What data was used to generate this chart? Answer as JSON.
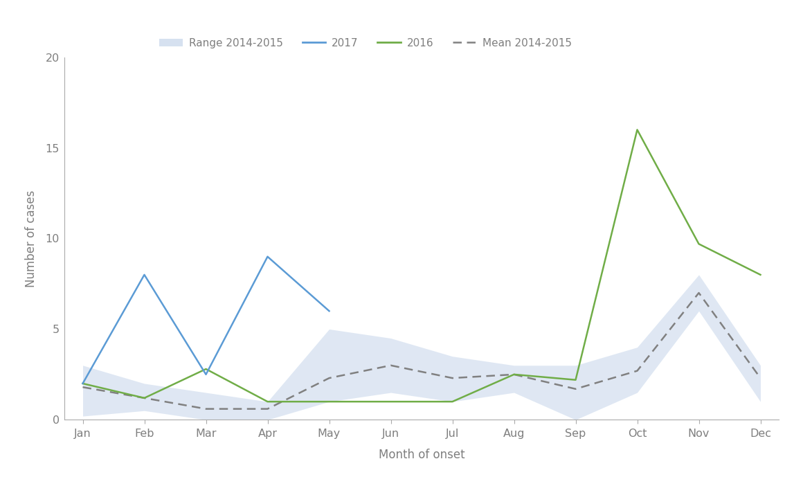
{
  "months": [
    "Jan",
    "Feb",
    "Mar",
    "Apr",
    "May",
    "Jun",
    "Jul",
    "Aug",
    "Sep",
    "Oct",
    "Nov",
    "Dec"
  ],
  "x": [
    0,
    1,
    2,
    3,
    4,
    5,
    6,
    7,
    8,
    9,
    10,
    11
  ],
  "data_2017": [
    2.0,
    8.0,
    2.5,
    9.0,
    6.0,
    null,
    null,
    null,
    null,
    null,
    null,
    null
  ],
  "data_2016": [
    2.0,
    1.2,
    2.8,
    1.0,
    1.0,
    1.0,
    1.0,
    2.5,
    2.2,
    16.0,
    9.7,
    8.0
  ],
  "mean_2014_2015": [
    1.8,
    1.2,
    0.6,
    0.6,
    2.3,
    3.0,
    2.3,
    2.5,
    1.7,
    2.7,
    7.0,
    2.3
  ],
  "range_low": [
    0.2,
    0.5,
    0.0,
    0.0,
    1.0,
    1.5,
    1.0,
    1.5,
    0.0,
    1.5,
    6.0,
    1.0
  ],
  "range_high": [
    3.0,
    2.0,
    1.5,
    1.0,
    5.0,
    4.5,
    3.5,
    3.0,
    3.0,
    4.0,
    8.0,
    3.0
  ],
  "color_2017": "#5b9bd5",
  "color_2016": "#70ad47",
  "color_mean": "#808080",
  "color_range_fill": "#c5d5ea",
  "ylim": [
    0,
    20
  ],
  "yticks": [
    0,
    5,
    10,
    15,
    20
  ],
  "ylabel": "Number of cases",
  "xlabel": "Month of onset",
  "legend_range": "Range 2014-2015",
  "legend_2017": "2017",
  "legend_2016": "2016",
  "legend_mean": "Mean 2014-2015",
  "bg_color": "#ffffff",
  "line_width": 1.8
}
